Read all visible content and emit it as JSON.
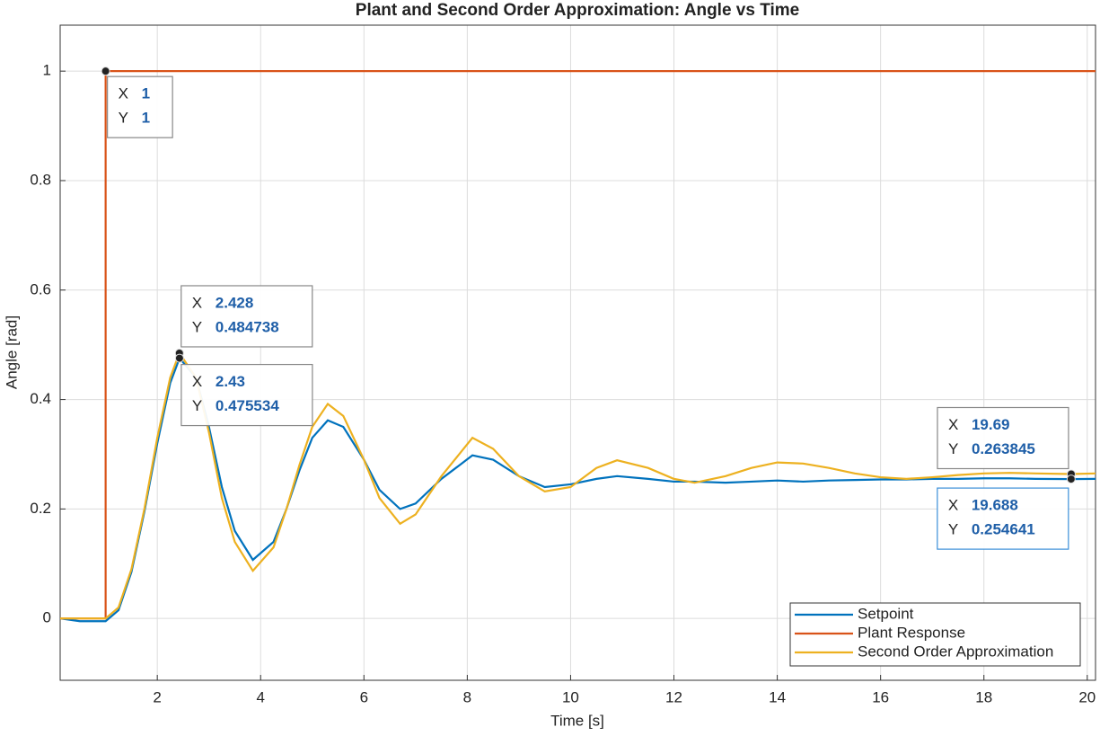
{
  "chart_data": {
    "type": "line",
    "title": "Plant and Second Order Approximation: Angle vs Time",
    "x_label": "Time [s]",
    "y_label": "Angle [rad]",
    "xlim": [
      0.12,
      20.16
    ],
    "ylim": [
      -0.113,
      1.084
    ],
    "xticks": [
      2,
      4,
      6,
      8,
      10,
      12,
      14,
      16,
      18,
      20
    ],
    "yticks": [
      0,
      0.2,
      0.4,
      0.6,
      0.8,
      1
    ],
    "grid": true,
    "legend": "lower right",
    "series": [
      {
        "name": "Setpoint",
        "color": "#0072BD",
        "x": [
          0.12,
          0.5,
          1,
          1.25,
          1.5,
          1.75,
          2,
          2.25,
          2.43,
          2.75,
          3,
          3.25,
          3.5,
          3.85,
          4.25,
          4.5,
          4.75,
          5,
          5.3,
          5.6,
          6,
          6.3,
          6.7,
          7,
          7.5,
          8.1,
          8.5,
          9,
          9.5,
          10,
          10.5,
          10.9,
          11.5,
          12,
          12.4,
          13,
          13.5,
          14,
          14.5,
          15,
          15.5,
          16,
          16.5,
          17,
          17.5,
          18,
          18.5,
          19,
          19.688,
          20.16
        ],
        "values": [
          0,
          -0.005,
          -0.005,
          0.015,
          0.085,
          0.195,
          0.32,
          0.43,
          0.475534,
          0.44,
          0.35,
          0.24,
          0.16,
          0.107,
          0.14,
          0.2,
          0.27,
          0.33,
          0.362,
          0.35,
          0.29,
          0.235,
          0.2,
          0.21,
          0.255,
          0.298,
          0.29,
          0.26,
          0.24,
          0.245,
          0.255,
          0.26,
          0.255,
          0.25,
          0.25,
          0.248,
          0.25,
          0.252,
          0.25,
          0.252,
          0.253,
          0.254,
          0.254,
          0.255,
          0.255,
          0.256,
          0.256,
          0.255,
          0.254641,
          0.255
        ]
      },
      {
        "name": "Plant Response",
        "color": "#D95319",
        "x": [
          0.12,
          1,
          1,
          20.16
        ],
        "values": [
          0,
          0,
          1,
          1
        ]
      },
      {
        "name": "Second Order Approximation",
        "color": "#EDB120",
        "x": [
          0.12,
          0.5,
          1,
          1.25,
          1.5,
          1.75,
          2,
          2.25,
          2.428,
          2.75,
          3,
          3.25,
          3.5,
          3.85,
          4.25,
          4.5,
          4.75,
          5,
          5.3,
          5.6,
          6,
          6.3,
          6.7,
          7,
          7.5,
          8.1,
          8.5,
          9,
          9.5,
          10,
          10.5,
          10.9,
          11.5,
          12,
          12.4,
          13,
          13.5,
          14,
          14.5,
          15,
          15.5,
          16,
          16.5,
          17,
          17.5,
          18,
          18.5,
          19,
          19.69,
          20.16
        ],
        "values": [
          0,
          0,
          0,
          0.02,
          0.09,
          0.2,
          0.33,
          0.44,
          0.484738,
          0.44,
          0.34,
          0.22,
          0.14,
          0.087,
          0.13,
          0.2,
          0.28,
          0.35,
          0.392,
          0.37,
          0.29,
          0.22,
          0.173,
          0.19,
          0.26,
          0.33,
          0.31,
          0.26,
          0.232,
          0.24,
          0.275,
          0.289,
          0.275,
          0.255,
          0.248,
          0.26,
          0.275,
          0.285,
          0.283,
          0.275,
          0.265,
          0.258,
          0.255,
          0.258,
          0.262,
          0.265,
          0.266,
          0.265,
          0.263845,
          0.265
        ]
      }
    ],
    "datatip_labels": [
      "X",
      "Y"
    ],
    "datatips": [
      {
        "x": 1,
        "y": 1
      },
      {
        "x": 2.428,
        "y": 0.484738
      },
      {
        "x": 2.43,
        "y": 0.475534
      },
      {
        "x": 19.69,
        "y": 0.263845
      },
      {
        "x": 19.688,
        "y": 0.254641
      }
    ]
  }
}
